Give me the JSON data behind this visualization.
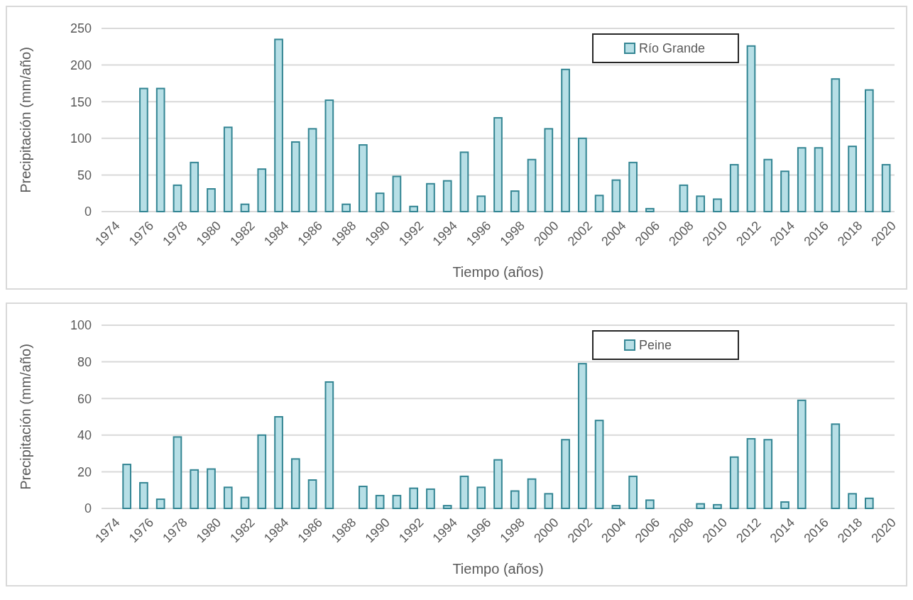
{
  "chart_data": [
    {
      "type": "bar",
      "xlabel": "Tiempo (años)",
      "ylabel": "Precipitación (mm/año)",
      "categories": [
        "1974",
        null,
        "1976",
        null,
        "1978",
        null,
        "1980",
        null,
        "1982",
        null,
        "1984",
        null,
        "1986",
        null,
        "1988",
        null,
        "1990",
        null,
        "1992",
        null,
        "1994",
        null,
        "1996",
        null,
        "1998",
        null,
        "2000",
        null,
        "2002",
        null,
        "2004",
        null,
        "2006",
        null,
        "2008",
        null,
        "2010",
        null,
        "2012",
        null,
        "2014",
        null,
        "2016",
        null,
        "2018",
        null,
        "2020"
      ],
      "series": [
        {
          "name": "Río Grande",
          "color": "#b7dfe6",
          "values": [
            null,
            null,
            168,
            168,
            36,
            67,
            31,
            115,
            10,
            58,
            235,
            95,
            113,
            152,
            10,
            91,
            25,
            48,
            7,
            38,
            42,
            81,
            21,
            128,
            28,
            71,
            113,
            194,
            100,
            22,
            43,
            67,
            4,
            null,
            36,
            21,
            17,
            64,
            226,
            71,
            55,
            87,
            87,
            181,
            89,
            166,
            64
          ]
        }
      ],
      "ylim": [
        0,
        250
      ],
      "yticks": [
        0,
        50,
        100,
        150,
        200,
        250
      ],
      "grid": "y",
      "legend": "top right"
    },
    {
      "type": "bar",
      "xlabel": "Tiempo (años)",
      "ylabel": "Precipitación (mm/año)",
      "categories": [
        "1974",
        null,
        "1976",
        null,
        "1978",
        null,
        "1980",
        null,
        "1982",
        null,
        "1984",
        null,
        "1986",
        null,
        "1988",
        null,
        "1990",
        null,
        "1992",
        null,
        "1994",
        null,
        "1996",
        null,
        "1998",
        null,
        "2000",
        null,
        "2002",
        null,
        "2004",
        null,
        "2006",
        null,
        "2008",
        null,
        "2010",
        null,
        "2012",
        null,
        "2014",
        null,
        "2016",
        null,
        "2018",
        null,
        "2020"
      ],
      "series": [
        {
          "name": "Peine",
          "color": "#b7dfe6",
          "values": [
            null,
            24,
            14,
            5,
            39,
            21,
            21.5,
            11.5,
            6,
            40,
            50,
            27,
            15.5,
            69,
            null,
            12,
            7,
            7,
            11,
            10.5,
            1.5,
            17.5,
            11.5,
            26.5,
            9.5,
            16,
            8,
            37.5,
            79,
            48,
            1.5,
            17.5,
            4.5,
            null,
            null,
            2.5,
            2,
            28,
            38,
            37.5,
            3.5,
            59,
            null,
            46,
            8,
            5.5,
            null
          ]
        }
      ],
      "ylim": [
        0,
        100
      ],
      "yticks": [
        0,
        20,
        40,
        60,
        80,
        100
      ],
      "grid": "y",
      "legend": "top right"
    }
  ]
}
